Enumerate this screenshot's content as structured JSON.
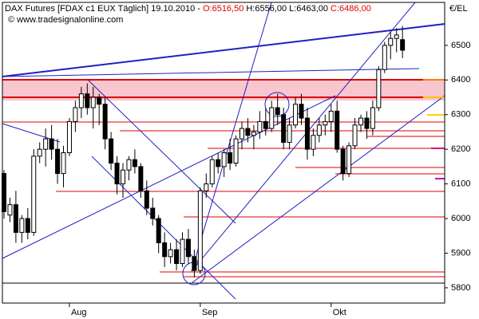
{
  "chart_data": {
    "type": "candlestick",
    "title": "DAX Futures [FDAX c1 EUX  Täglich] 19.10.2010 -",
    "ohlc_labels": [
      "O:6516,50",
      "H:6556,00",
      "L:6463,00",
      "C:6486,00"
    ],
    "ohlc_label_colors": [
      "#e00000",
      "#000000",
      "#000000",
      "#e00000"
    ],
    "copyright": "© www.tradesignalonline.com",
    "y_axis_label": "€/EL",
    "categories": [
      null,
      null,
      null,
      null,
      null,
      null,
      null,
      null,
      null,
      null,
      null,
      "Aug",
      null,
      null,
      null,
      null,
      null,
      null,
      null,
      null,
      null,
      null,
      null,
      null,
      null,
      null,
      null,
      null,
      null,
      null,
      null,
      null,
      null,
      "Sep",
      null,
      null,
      null,
      null,
      null,
      null,
      null,
      null,
      null,
      null,
      null,
      null,
      null,
      null,
      null,
      null,
      null,
      null,
      null,
      null,
      null,
      "Okt",
      null,
      null,
      null,
      null,
      null,
      null,
      null,
      null,
      null,
      null,
      null,
      null
    ],
    "open": [
      6130,
      6010,
      6040,
      5960,
      6000,
      5960,
      6180,
      6200,
      6230,
      6200,
      6130,
      6190,
      6280,
      6320,
      6360,
      6320,
      6350,
      6330,
      6230,
      6160,
      6100,
      6140,
      6170,
      6150,
      6080,
      6030,
      6000,
      5930,
      5890,
      5910,
      5870,
      5940,
      5890,
      5850,
      6080,
      6100,
      6170,
      6150,
      6190,
      6160,
      6230,
      6260,
      6240,
      6250,
      6280,
      6260,
      6320,
      6300,
      6220,
      6270,
      6330,
      6290,
      6200,
      6240,
      6270,
      6280,
      6310,
      6200,
      6130,
      6210,
      6270,
      6290,
      6260,
      6320,
      6430,
      6500,
      6520,
      6516.5
    ],
    "high": [
      6140,
      6060,
      6080,
      6010,
      6030,
      6200,
      6220,
      6260,
      6270,
      6230,
      6210,
      6290,
      6340,
      6380,
      6390,
      6380,
      6360,
      6350,
      6250,
      6180,
      6160,
      6180,
      6200,
      6160,
      6110,
      6060,
      6010,
      5960,
      5930,
      5940,
      5960,
      5970,
      5910,
      6090,
      6130,
      6180,
      6190,
      6200,
      6230,
      6240,
      6280,
      6290,
      6270,
      6310,
      6320,
      6340,
      6360,
      6320,
      6290,
      6350,
      6360,
      6320,
      6260,
      6290,
      6300,
      6330,
      6340,
      6210,
      6220,
      6290,
      6300,
      6310,
      6340,
      6440,
      6510,
      6540,
      6550,
      6556
    ],
    "low": [
      6000,
      5990,
      5930,
      5930,
      5940,
      5950,
      6160,
      6150,
      6170,
      6100,
      6090,
      6180,
      6250,
      6290,
      6300,
      6260,
      6270,
      6200,
      6140,
      6070,
      6060,
      6110,
      6130,
      6060,
      6010,
      5980,
      5900,
      5860,
      5870,
      5850,
      5860,
      5870,
      5830,
      5840,
      6060,
      6090,
      6130,
      6120,
      6140,
      6150,
      6200,
      6220,
      6200,
      6230,
      6240,
      6250,
      6270,
      6200,
      6200,
      6260,
      6270,
      6170,
      6180,
      6220,
      6240,
      6250,
      6190,
      6110,
      6120,
      6200,
      6250,
      6230,
      6240,
      6310,
      6420,
      6460,
      6480,
      6463
    ],
    "close": [
      6020,
      6040,
      5960,
      6000,
      5960,
      6180,
      6200,
      6230,
      6200,
      6130,
      6190,
      6280,
      6320,
      6360,
      6320,
      6350,
      6330,
      6230,
      6160,
      6100,
      6140,
      6170,
      6150,
      6080,
      6030,
      6000,
      5930,
      5890,
      5910,
      5870,
      5940,
      5890,
      5850,
      6080,
      6100,
      6170,
      6150,
      6190,
      6160,
      6230,
      6260,
      6240,
      6250,
      6280,
      6260,
      6320,
      6300,
      6220,
      6270,
      6330,
      6290,
      6200,
      6240,
      6270,
      6280,
      6310,
      6200,
      6130,
      6210,
      6270,
      6290,
      6260,
      6320,
      6430,
      6500,
      6520,
      6530,
      6486
    ],
    "up_color": "#ffffff",
    "down_color": "#000000",
    "ylim": [
      5756,
      6624
    ],
    "yticks": [
      5800,
      5900,
      6000,
      6100,
      6200,
      6300,
      6400,
      6500
    ]
  }
}
